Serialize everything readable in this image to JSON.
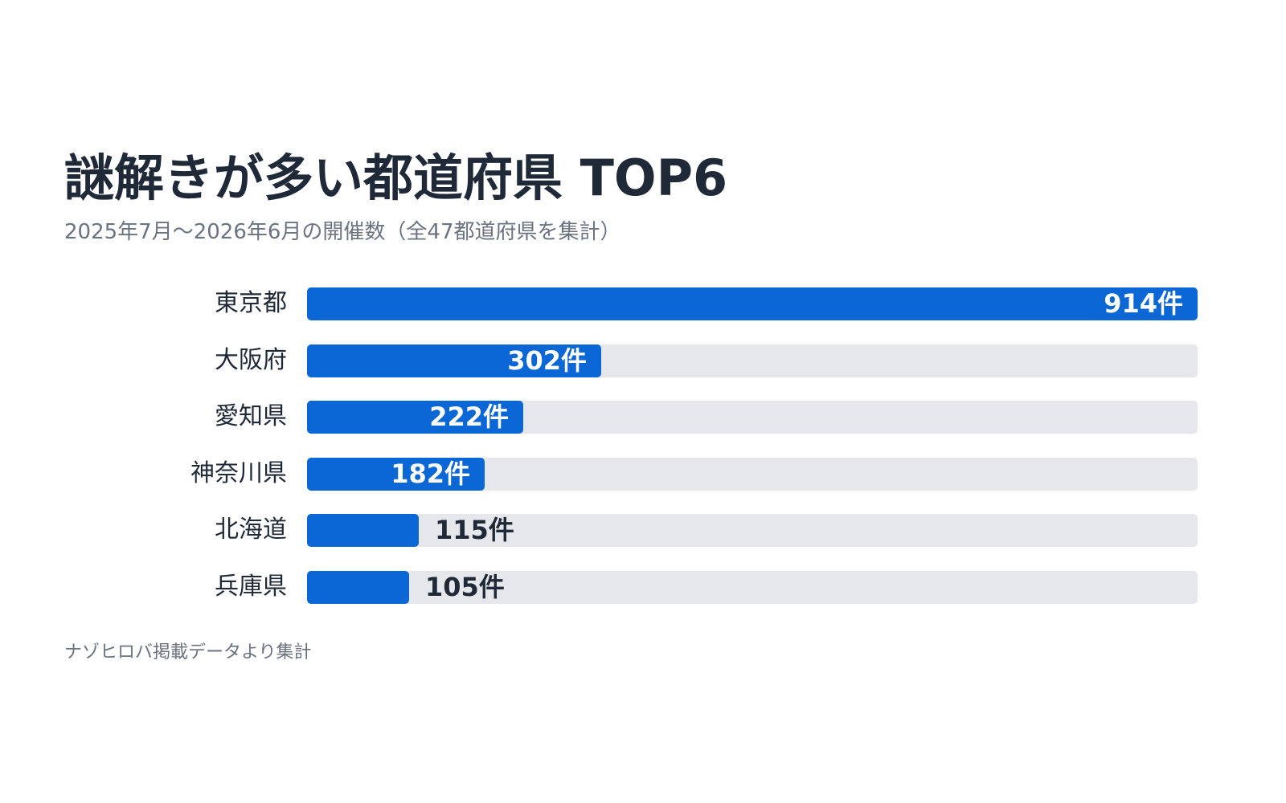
{
  "chart_data": {
    "type": "bar",
    "orientation": "horizontal",
    "title": "謎解きが多い都道府県 TOP6",
    "subtitle": "2025年7月〜2026年6月の開催数（全47都道府県を集計）",
    "categories": [
      "東京都",
      "大阪府",
      "愛知県",
      "神奈川県",
      "北海道",
      "兵庫県"
    ],
    "values": [
      914,
      302,
      222,
      182,
      115,
      105
    ],
    "value_labels": [
      "914件",
      "302件",
      "222件",
      "182件",
      "115件",
      "105件"
    ],
    "xlim": [
      0,
      914
    ],
    "grid": false,
    "legend": "none",
    "footnote": "ナゾヒロバ掲載データより集計"
  },
  "colors": {
    "bar": "#0b66d6",
    "track": "#e5e7eb",
    "text": "#1f2937",
    "muted": "#6b7280"
  }
}
